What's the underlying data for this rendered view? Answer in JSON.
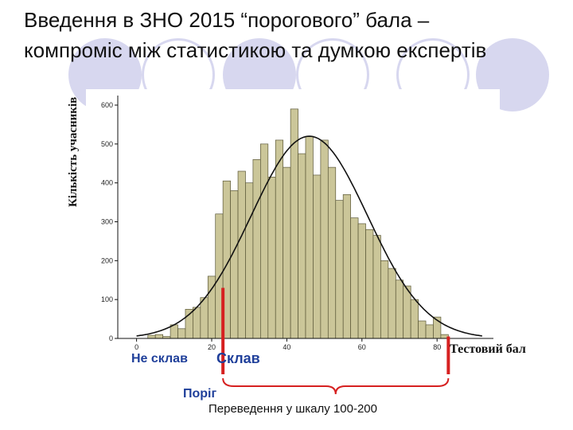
{
  "slide": {
    "title_line1": "Введення в ЗНО 2015 “порогового” бала –",
    "title_line2": "компроміс між статистикою та думкою експертів",
    "decor_color": "#d7d7ef"
  },
  "annotations": {
    "fail": "Не склав",
    "pass": "Склав",
    "threshold": "Поріг",
    "scale": "Переведення у шкалу 100-200",
    "marker_color": "#d62020",
    "text_color": "#1f3f9a"
  },
  "chart_data": {
    "type": "bar",
    "title": "",
    "xlabel": "Тестовий бал",
    "ylabel": "Кількість учасників",
    "xlim": [
      -5,
      95
    ],
    "ylim": [
      0,
      600
    ],
    "xticks": [
      0,
      20,
      40,
      60,
      80
    ],
    "yticks": [
      0,
      100,
      200,
      300,
      400,
      500,
      600
    ],
    "bar_color": "#cbc699",
    "grid": false,
    "threshold": 23,
    "upper_limit": 83,
    "histogram": {
      "bin_width": 2,
      "x_start": 3,
      "values": [
        8,
        10,
        5,
        35,
        25,
        75,
        80,
        105,
        160,
        320,
        405,
        380,
        430,
        400,
        460,
        500,
        415,
        510,
        440,
        590,
        475,
        520,
        420,
        510,
        440,
        355,
        370,
        310,
        295,
        280,
        265,
        200,
        180,
        150,
        135,
        100,
        45,
        35,
        55,
        10
      ]
    },
    "normal_curve": {
      "name": "",
      "mean": 46,
      "sd": 15.5,
      "peak": 520
    }
  }
}
